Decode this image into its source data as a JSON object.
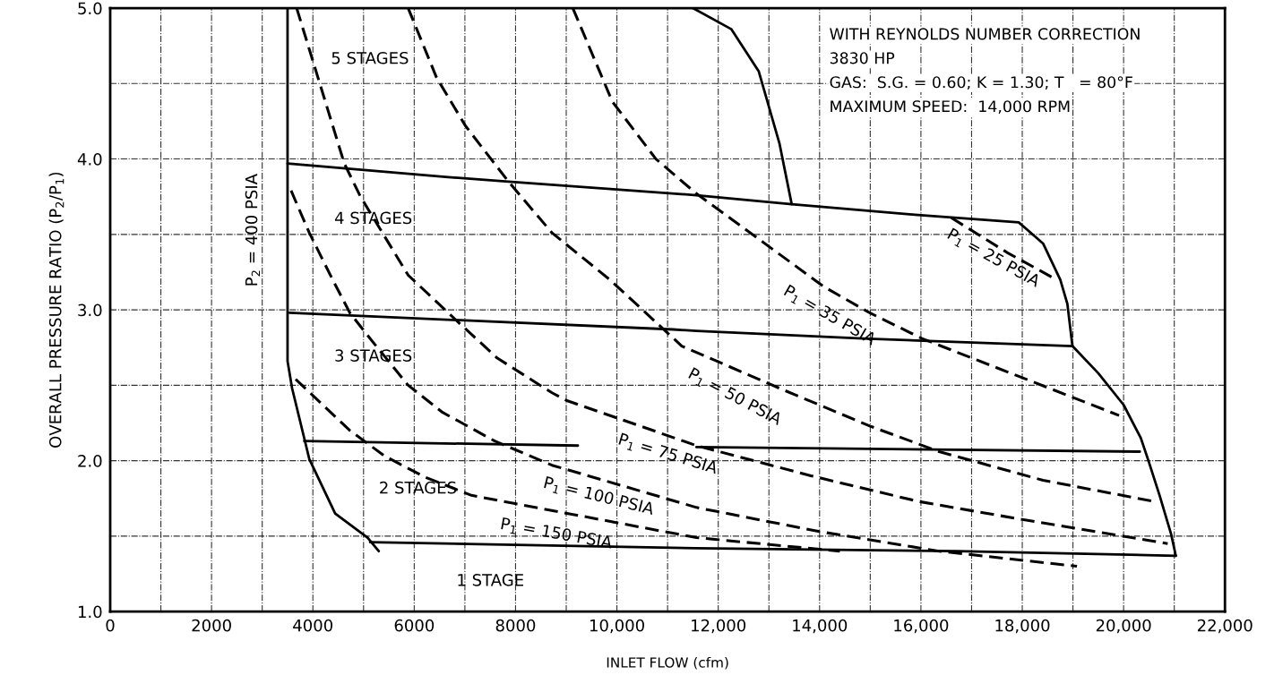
{
  "chart_data": {
    "type": "line",
    "xlabel": "INLET FLOW (cfm)",
    "ylabel": "OVERALL PRESSURE RATIO (P$_{2}$/P$_{1}$)",
    "xlim": [
      0,
      22000
    ],
    "ylim": [
      1.0,
      5.0
    ],
    "xticks": [
      0,
      {
        "value": 1000,
        "label": null
      },
      2000,
      {
        "value": 3000,
        "label": null
      },
      4000,
      {
        "value": 5000,
        "label": null
      },
      6000,
      {
        "value": 7000,
        "label": null
      },
      8000,
      {
        "value": 9000,
        "label": null
      },
      {
        "value": 10000,
        "label": "10,000"
      },
      {
        "value": 11000,
        "label": null
      },
      {
        "value": 12000,
        "label": "12,000"
      },
      {
        "value": 13000,
        "label": null
      },
      {
        "value": 14000,
        "label": "14,000"
      },
      {
        "value": 15000,
        "label": null
      },
      {
        "value": 16000,
        "label": "16,000"
      },
      {
        "value": 17000,
        "label": null
      },
      {
        "value": 18000,
        "label": "18,000"
      },
      {
        "value": 19000,
        "label": null
      },
      {
        "value": 20000,
        "label": "20,000"
      },
      {
        "value": 21000,
        "label": null
      },
      {
        "value": 22000,
        "label": "22,000"
      }
    ],
    "yticks": [
      {
        "value": 1.0,
        "label": "1.0"
      },
      {
        "value": 1.5,
        "label": null
      },
      {
        "value": 2.0,
        "label": "2.0"
      },
      {
        "value": 2.5,
        "label": null
      },
      {
        "value": 3.0,
        "label": "3.0"
      },
      {
        "value": 3.5,
        "label": null
      },
      {
        "value": 4.0,
        "label": "4.0"
      },
      {
        "value": 4.5,
        "label": null
      },
      {
        "value": 5.0,
        "label": "5.0"
      }
    ],
    "grid": true,
    "legend": false,
    "marker": "none",
    "series": [
      {
        "color": "#000000",
        "line_style": "solid",
        "x": [
          3500,
          3500,
          3590,
          3930,
          4440,
          5080,
          5300
        ],
        "values": [
          5.0,
          2.66,
          2.48,
          2.01,
          1.65,
          1.49,
          1.4
        ]
      },
      {
        "color": "#000000",
        "line_style": "solid",
        "x": [
          11500,
          12260,
          12800,
          13210,
          13450
        ],
        "values": [
          5.0,
          4.86,
          4.58,
          4.1,
          3.7
        ]
      },
      {
        "color": "#000000",
        "line_style": "solid",
        "x": [
          3500,
          6670,
          7860,
          11570,
          13450,
          15880,
          17930,
          18410,
          18750,
          18890,
          18990,
          19500,
          20000,
          20340,
          20490,
          20710,
          20940,
          21030
        ],
        "values": [
          3.97,
          3.88,
          3.85,
          3.76,
          3.7,
          3.63,
          3.58,
          3.44,
          3.2,
          3.04,
          2.76,
          2.58,
          2.37,
          2.15,
          2.0,
          1.77,
          1.51,
          1.37
        ]
      },
      {
        "color": "#000000",
        "line_style": "solid",
        "x": [
          3540,
          11110,
          11570,
          14850,
          18990
        ],
        "values": [
          2.98,
          2.87,
          2.86,
          2.81,
          2.76
        ]
      },
      {
        "color": "#000000",
        "line_style": "solid",
        "x": [
          3830,
          9230,
          10400,
          11570,
          20320
        ],
        "values": [
          2.13,
          2.1,
          null,
          2.09,
          2.06
        ]
      },
      {
        "color": "#000000",
        "line_style": "solid",
        "x": [
          5130,
          11570,
          16700,
          21030
        ],
        "values": [
          1.46,
          1.42,
          1.4,
          1.37
        ]
      },
      {
        "color": "#000000",
        "line_style": "dashed",
        "x": [
          16600,
          17700,
          18620
        ],
        "values": [
          3.61,
          3.38,
          3.21
        ]
      },
      {
        "color": "#000000",
        "line_style": "dashed",
        "x": [
          9130,
          9910,
          10770,
          11570,
          14100,
          14990,
          16020,
          18000,
          19910
        ],
        "values": [
          5.0,
          4.38,
          4.0,
          3.77,
          3.15,
          2.98,
          2.81,
          2.55,
          2.3
        ]
      },
      {
        "color": "#000000",
        "line_style": "dashed",
        "x": [
          5880,
          6440,
          7010,
          7860,
          8720,
          9860,
          11280,
          13280,
          14990,
          16360,
          18410,
          20600
        ],
        "values": [
          5.0,
          4.54,
          4.22,
          3.85,
          3.51,
          3.2,
          2.76,
          2.47,
          2.23,
          2.06,
          1.87,
          1.73
        ]
      },
      {
        "color": "#000000",
        "line_style": "dashed",
        "x": [
          3680,
          4620,
          4940,
          5880,
          6670,
          7640,
          8720,
          9000,
          11570,
          13830,
          15950,
          18000,
          20870
        ],
        "values": [
          5.0,
          3.97,
          3.75,
          3.23,
          2.98,
          2.68,
          2.45,
          2.4,
          2.1,
          1.9,
          1.73,
          1.61,
          1.45
        ]
      },
      {
        "color": "#000000",
        "line_style": "dashed",
        "x": [
          3570,
          3930,
          4390,
          4730,
          5200,
          5880,
          6560,
          7590,
          8720,
          11570,
          14000,
          16360,
          19080
        ],
        "values": [
          3.79,
          3.51,
          3.2,
          2.98,
          2.78,
          2.5,
          2.32,
          2.13,
          1.97,
          1.69,
          1.53,
          1.4,
          1.3
        ]
      },
      {
        "color": "#000000",
        "line_style": "dashed",
        "x": [
          3660,
          4730,
          5420,
          6220,
          7130,
          11570,
          14400
        ],
        "values": [
          2.54,
          2.2,
          2.03,
          1.89,
          1.77,
          1.49,
          1.4
        ]
      }
    ],
    "annotations": [
      "WITH REYNOLDS NUMBER CORRECTION",
      "3830 HP",
      "GAS:  S.G. = 0.60; K = 1.30; T   = 80°F",
      "MAXIMUM SPEED:  14,000 RPM",
      "5 STAGES",
      "4 STAGES",
      "3 STAGES",
      "2 STAGES",
      "1 STAGE",
      "P$_{2}$ = 400 PSIA",
      "P$_{1}$ = 25 PSIA",
      "P$_{1}$ = 35 PSIA",
      "P$_{1}$ = 50 PSIA",
      "P$_{1}$ = 75 PSIA",
      "P$_{1}$ = 100 PSIA",
      "P$_{1}$ = 150 PSIA"
    ]
  }
}
